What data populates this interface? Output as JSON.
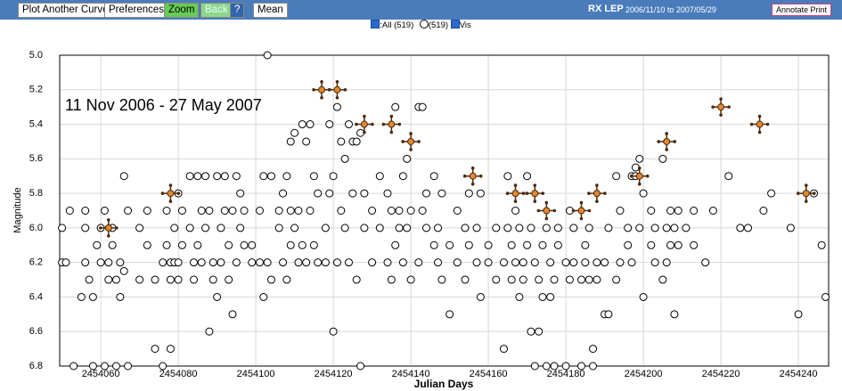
{
  "toolbar": {
    "buttons": [
      "Plot Another Curve",
      "Preferences",
      "Zoom",
      "Back",
      "?",
      "Mean"
    ],
    "star": "RX LEP",
    "date_range": "2006/11/10 to 2007/05/29",
    "annotate": "Annotate Print"
  },
  "legend": {
    "all": ":All (519)",
    "count": "(519)",
    "vis": "Vis"
  },
  "chart_data": {
    "type": "scatter",
    "annotation": "11 Nov 2006 - 27 May 2007",
    "x_label": "Julian Days",
    "y_label": "Magnitude",
    "xlim": [
      2454049.4,
      2454247.8
    ],
    "ylim": [
      6.8,
      5.0
    ],
    "xticks": [
      2454060,
      2454080,
      2454100,
      2454120,
      2454140,
      2454160,
      2454180,
      2454200,
      2454220,
      2454240
    ],
    "yticks": [
      {
        "value": 5.0,
        "label": "5.0"
      },
      5.2,
      5.4,
      5.6,
      5.8,
      {
        "value": 6.0,
        "label": "6.0"
      },
      6.2,
      6.4,
      6.6,
      6.8
    ],
    "grid": true,
    "series": [
      {
        "marker": "circle",
        "color": "#000000",
        "x": [
          2454050,
          2454050,
          2454051,
          2454052,
          2454053,
          2454055,
          2454056,
          2454056,
          2454056,
          2454057,
          2454058,
          2454058,
          2454059,
          2454060,
          2454060,
          2454061,
          2454061,
          2454062,
          2454062,
          2454063,
          2454063,
          2454064,
          2454064,
          2454065,
          2454065,
          2454066,
          2454066,
          2454067,
          2454067,
          2454070,
          2454070,
          2454072,
          2454072,
          2454074,
          2454074,
          2454076,
          2454076,
          2454077,
          2454077,
          2454078,
          2454078,
          2454078,
          2454079,
          2454079,
          2454080,
          2454080,
          2454080,
          2454081,
          2454081,
          2454083,
          2454083,
          2454084,
          2454084,
          2454085,
          2454085,
          2454086,
          2454086,
          2454087,
          2454087,
          2454088,
          2454088,
          2454089,
          2454089,
          2454090,
          2454090,
          2454091,
          2454091,
          2454092,
          2454092,
          2454093,
          2454093,
          2454094,
          2454094,
          2454095,
          2454095,
          2454096,
          2454096,
          2454097,
          2454097,
          2454099,
          2454099,
          2454101,
          2454101,
          2454102,
          2454102,
          2454103,
          2454103,
          2454104,
          2454104,
          2454106,
          2454106,
          2454107,
          2454107,
          2454108,
          2454108,
          2454109,
          2454109,
          2454109,
          2454110,
          2454110,
          2454111,
          2454111,
          2454112,
          2454112,
          2454113,
          2454113,
          2454114,
          2454114,
          2454115,
          2454115,
          2454116,
          2454116,
          2454118,
          2454118,
          2454119,
          2454119,
          2454120,
          2454120,
          2454121,
          2454121,
          2454122,
          2454122,
          2454123,
          2454123,
          2454124,
          2454124,
          2454125,
          2454125,
          2454126,
          2454126,
          2454127,
          2454127,
          2454128,
          2454128,
          2454130,
          2454130,
          2454132,
          2454132,
          2454134,
          2454134,
          2454135,
          2454135,
          2454136,
          2454136,
          2454137,
          2454137,
          2454138,
          2454138,
          2454139,
          2454139,
          2454140,
          2454140,
          2454142,
          2454142,
          2454143,
          2454143,
          2454144,
          2454144,
          2454146,
          2454146,
          2454147,
          2454147,
          2454148,
          2454148,
          2454150,
          2454150,
          2454152,
          2454152,
          2454154,
          2454154,
          2454155,
          2454155,
          2454157,
          2454157,
          2454158,
          2454158,
          2454160,
          2454160,
          2454162,
          2454162,
          2454164,
          2454164,
          2454165,
          2454165,
          2454166,
          2454166,
          2454167,
          2454167,
          2454168,
          2454168,
          2454169,
          2454169,
          2454170,
          2454170,
          2454171,
          2454171,
          2454172,
          2454172,
          2454173,
          2454173,
          2454174,
          2454174,
          2454175,
          2454175,
          2454176,
          2454176,
          2454177,
          2454177,
          2454178,
          2454178,
          2454180,
          2454180,
          2454181,
          2454181,
          2454182,
          2454182,
          2454184,
          2454184,
          2454185,
          2454185,
          2454186,
          2454186,
          2454187,
          2454187,
          2454188,
          2454188,
          2454190,
          2454190,
          2454191,
          2454191,
          2454193,
          2454193,
          2454194,
          2454194,
          2454196,
          2454196,
          2454197,
          2454197,
          2454198,
          2454198,
          2454199,
          2454199,
          2454200,
          2454200,
          2454202,
          2454202,
          2454203,
          2454203,
          2454205,
          2454205,
          2454206,
          2454206,
          2454207,
          2454207,
          2454208,
          2454208,
          2454209,
          2454209,
          2454211,
          2454213,
          2454213,
          2454216,
          2454218,
          2454222,
          2454225,
          2454227,
          2454231,
          2454233,
          2454238,
          2454240,
          2454244,
          2454246,
          2454247
        ],
        "values": [
          6.0,
          6.2,
          6.2,
          5.9,
          6.8,
          6.4,
          6.2,
          6.0,
          5.9,
          6.3,
          6.4,
          6.8,
          6.1,
          6.2,
          6.0,
          5.9,
          6.8,
          6.2,
          6.3,
          6.1,
          6.0,
          6.3,
          6.8,
          6.2,
          6.4,
          5.7,
          6.25,
          5.9,
          6.8,
          6.0,
          6.3,
          6.1,
          5.9,
          6.7,
          6.3,
          6.2,
          6.8,
          5.9,
          6.1,
          6.2,
          6.3,
          6.7,
          6.0,
          6.2,
          5.8,
          6.2,
          6.3,
          5.9,
          6.1,
          5.7,
          6.0,
          6.2,
          6.3,
          5.7,
          6.1,
          5.9,
          6.2,
          5.7,
          6.0,
          6.6,
          5.9,
          6.2,
          6.3,
          5.7,
          6.4,
          6.0,
          6.2,
          5.7,
          5.9,
          6.1,
          6.3,
          6.5,
          5.9,
          5.7,
          6.2,
          5.8,
          6.0,
          6.1,
          5.9,
          6.2,
          6.1,
          5.9,
          6.2,
          6.4,
          5.7,
          5.0,
          6.2,
          5.7,
          6.3,
          5.9,
          6.0,
          5.8,
          6.2,
          5.7,
          6.3,
          5.5,
          5.9,
          6.1,
          5.45,
          6.0,
          5.9,
          6.2,
          5.4,
          6.1,
          5.5,
          6.2,
          5.4,
          5.9,
          5.7,
          6.1,
          5.8,
          6.2,
          6.0,
          6.2,
          5.4,
          5.8,
          6.6,
          5.7,
          5.3,
          6.2,
          5.5,
          5.9,
          5.6,
          6.0,
          5.4,
          6.2,
          5.5,
          5.8,
          6.3,
          5.5,
          6.8,
          5.45,
          5.8,
          6.0,
          5.9,
          6.2,
          5.7,
          6.0,
          5.8,
          6.2,
          5.9,
          6.3,
          5.3,
          6.1,
          5.9,
          6.0,
          5.7,
          6.2,
          5.6,
          6.0,
          5.9,
          6.3,
          5.3,
          6.2,
          5.3,
          5.9,
          5.8,
          6.0,
          5.7,
          6.1,
          6.0,
          6.2,
          6.3,
          5.8,
          6.5,
          6.1,
          5.9,
          6.2,
          6.0,
          6.3,
          5.8,
          6.1,
          6.2,
          6.0,
          6.4,
          5.8,
          6.1,
          6.2,
          6.0,
          6.3,
          6.7,
          6.2,
          5.7,
          6.0,
          6.1,
          6.3,
          5.9,
          6.2,
          6.4,
          6.0,
          6.2,
          6.3,
          5.7,
          6.1,
          6.0,
          6.6,
          6.2,
          6.8,
          6.3,
          6.6,
          6.1,
          6.4,
          6.0,
          6.8,
          6.2,
          6.4,
          6.3,
          6.8,
          6.0,
          6.1,
          6.2,
          6.8,
          5.9,
          6.3,
          6.0,
          6.2,
          6.3,
          6.8,
          6.2,
          6.1,
          6.0,
          6.3,
          6.8,
          6.7,
          6.2,
          6.3,
          6.5,
          6.2,
          6.5,
          6.0,
          5.7,
          6.3,
          6.2,
          5.9,
          6.0,
          6.1,
          5.7,
          6.2,
          5.65,
          5.7,
          5.6,
          6.0,
          6.4,
          5.8,
          5.9,
          6.1,
          6.2,
          6.0,
          5.6,
          6.3,
          6.2,
          6.0,
          5.9,
          6.1,
          6.5,
          6.0,
          5.9,
          6.1,
          6.0,
          6.1,
          5.9,
          6.2,
          5.9,
          5.7,
          6.0,
          6.0,
          5.9,
          5.8,
          6.0,
          6.5,
          5.8,
          6.1,
          6.4
        ]
      },
      {
        "marker": "cross",
        "color": "#e8862a",
        "x": [
          2454062,
          2454078,
          2454117,
          2454121,
          2454128,
          2454135,
          2454140,
          2454156,
          2454167,
          2454172,
          2454175,
          2454184,
          2454188,
          2454199,
          2454206,
          2454220,
          2454230,
          2454242
        ],
        "values": [
          6.0,
          5.8,
          5.2,
          5.2,
          5.4,
          5.4,
          5.5,
          5.7,
          5.8,
          5.8,
          5.9,
          5.9,
          5.8,
          5.7,
          5.5,
          5.3,
          5.4,
          5.8
        ]
      }
    ]
  }
}
